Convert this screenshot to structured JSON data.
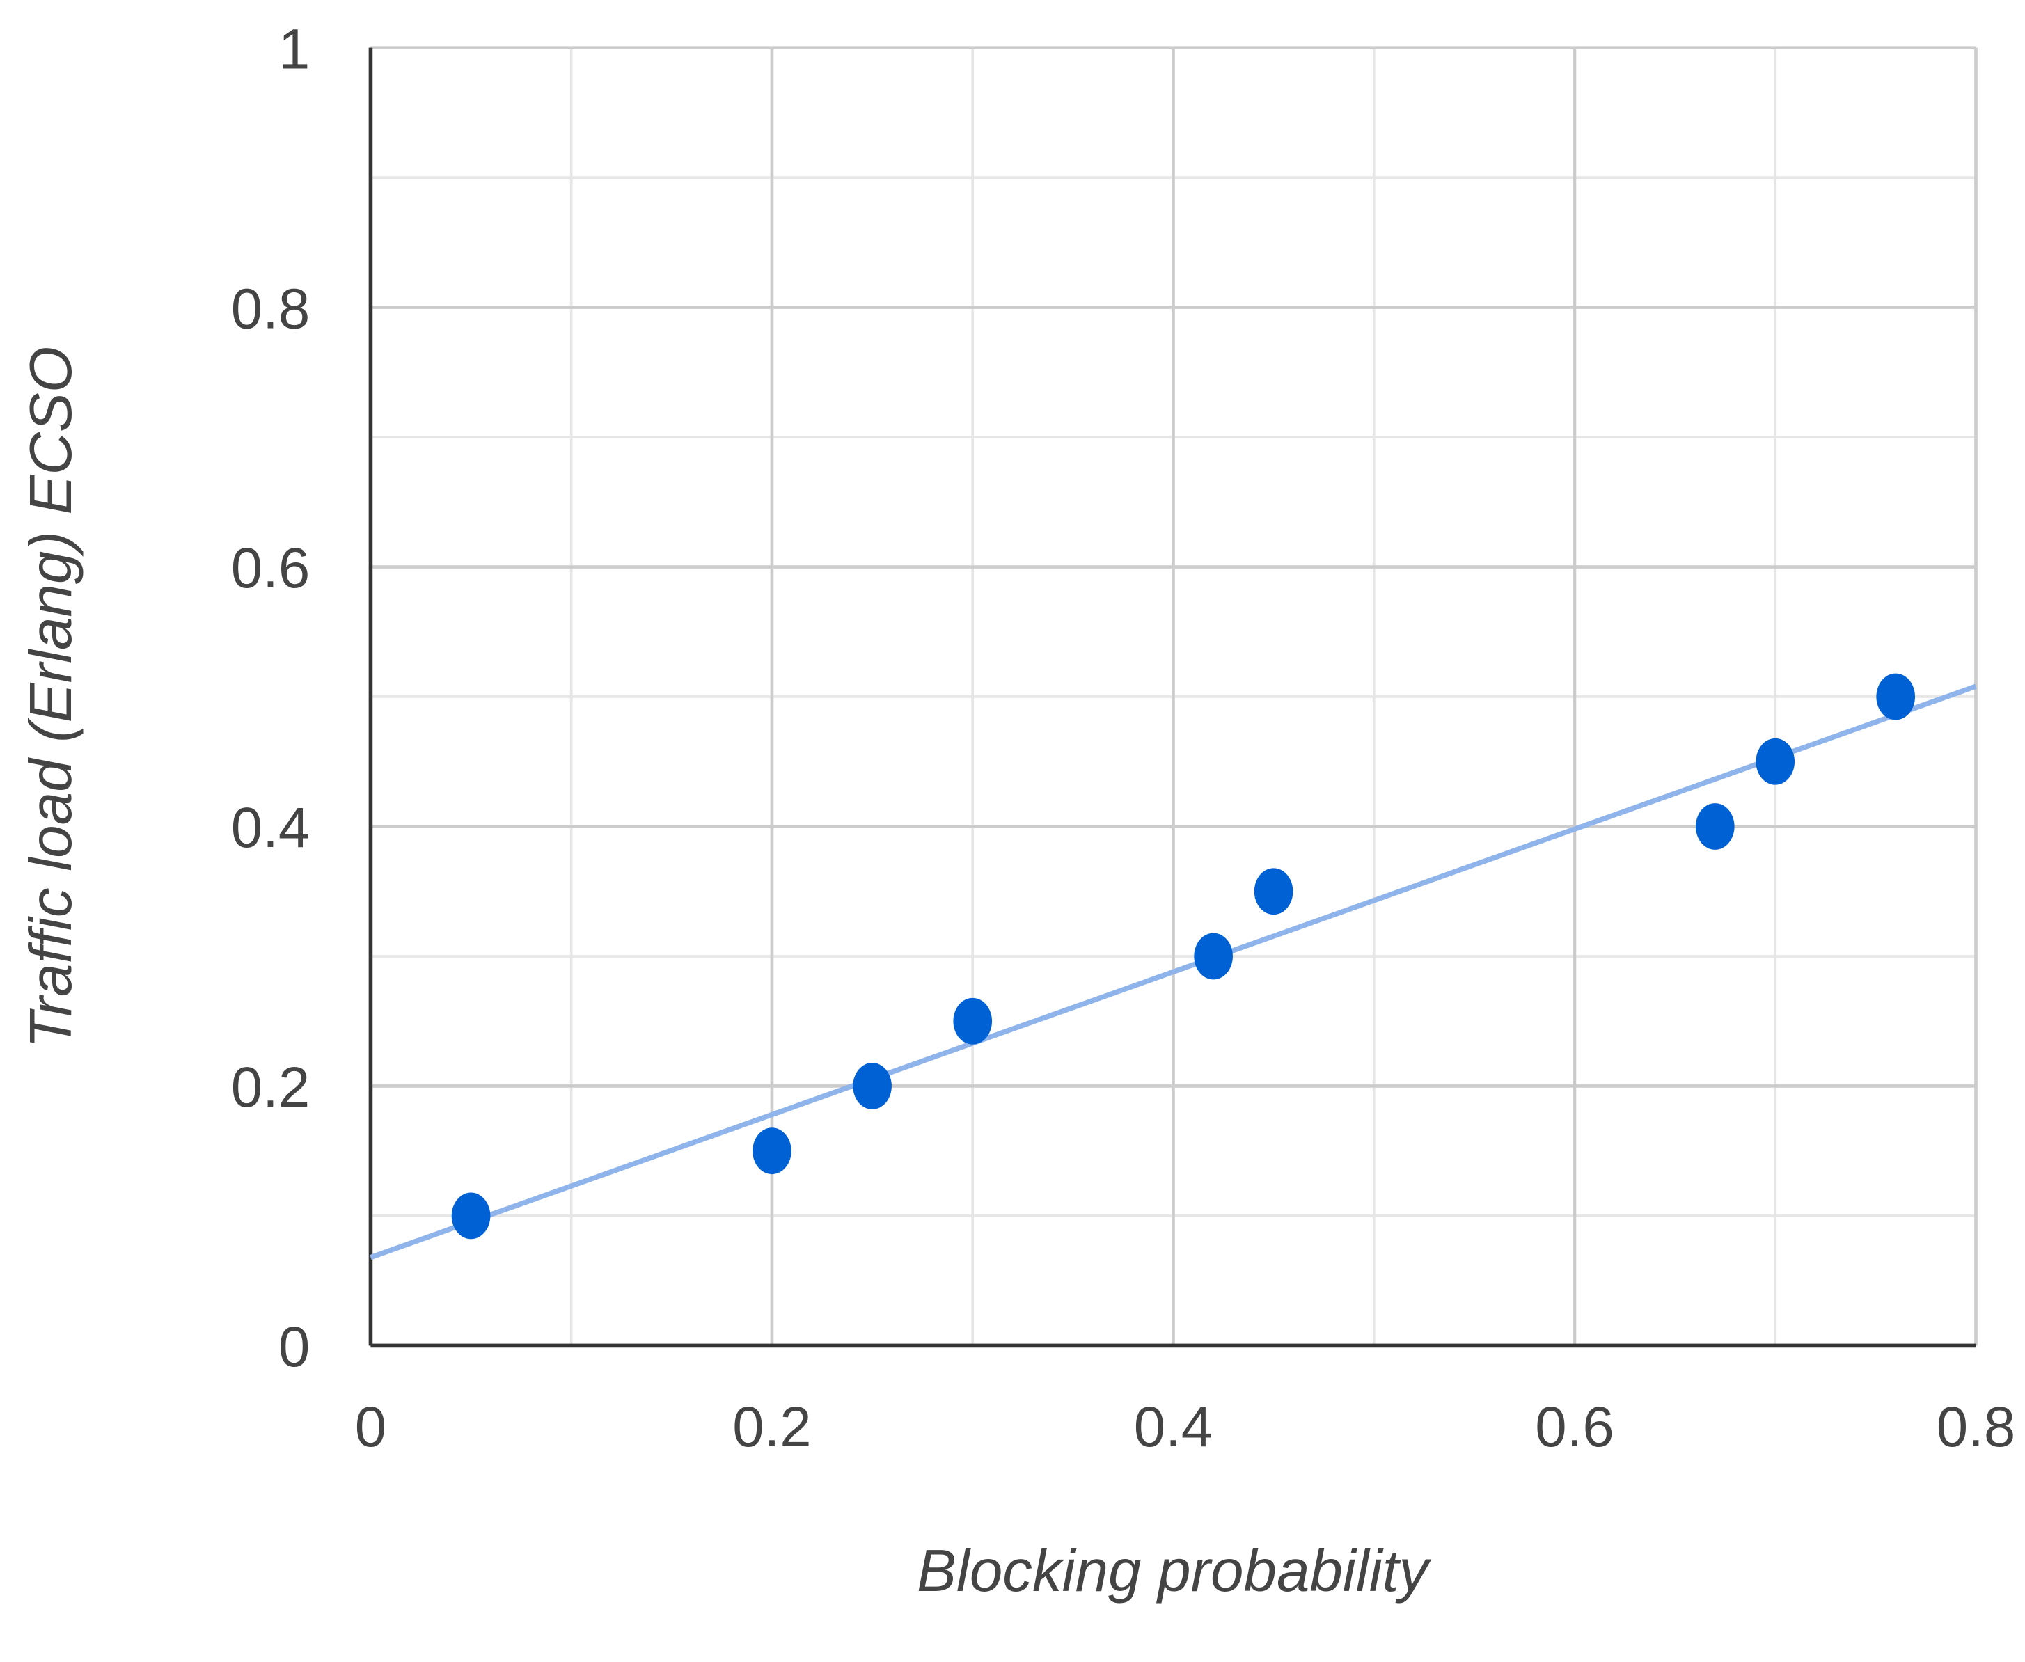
{
  "chart_data": {
    "type": "scatter",
    "x_label": "Blocking probability",
    "y_label": "Traffic load (Erlang) ECSO",
    "series": [
      {
        "color": "#0061d5",
        "x": [
          0.05,
          0.2,
          0.25,
          0.3,
          0.42,
          0.45,
          0.67,
          0.7,
          0.76
        ],
        "values": [
          0.1,
          0.15,
          0.2,
          0.25,
          0.3,
          0.35,
          0.4,
          0.45,
          0.5
        ]
      }
    ],
    "trendline": {
      "color": "#8fb4ec",
      "x": [
        0,
        0.8
      ],
      "values": [
        0.068,
        0.508
      ]
    },
    "xlim": [
      0,
      0.8
    ],
    "ylim": [
      0,
      1
    ],
    "xticks": [
      0,
      0.2,
      0.4,
      0.6,
      0.8
    ],
    "yticks": [
      0,
      0.2,
      0.4,
      0.6,
      0.8,
      1
    ],
    "x_minor_grid": [
      0.1,
      0.3,
      0.5,
      0.7
    ],
    "y_minor_grid": [
      0.1,
      0.3,
      0.5,
      0.7,
      0.9
    ],
    "grid": true
  }
}
